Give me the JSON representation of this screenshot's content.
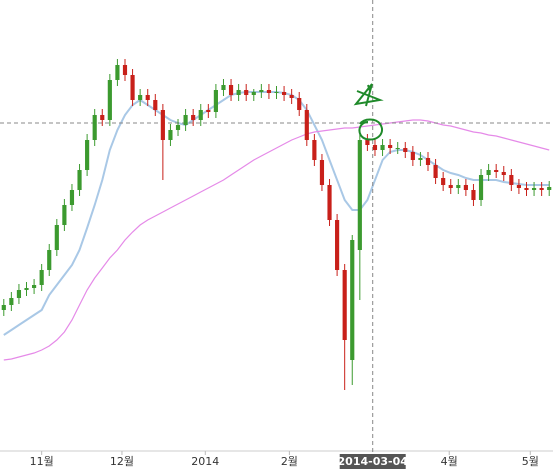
{
  "chart_data": {
    "type": "candlestick",
    "ylim": [
      0,
      450
    ],
    "xlim": [
      -0.5,
      72.5
    ],
    "up_color": "#3c9a2f",
    "down_color": "#c8201a",
    "open": [
      140,
      145,
      152,
      160,
      162,
      165,
      180,
      200,
      225,
      245,
      260,
      280,
      310,
      335,
      330,
      370,
      385,
      375,
      350,
      355,
      350,
      340,
      310,
      320,
      325,
      335,
      330,
      340,
      338,
      360,
      365,
      355,
      360,
      355,
      358,
      360,
      357,
      358,
      355,
      352,
      340,
      310,
      290,
      265,
      230,
      180,
      90,
      200,
      310,
      305,
      300,
      305,
      302,
      302,
      298,
      290,
      292,
      285,
      272,
      265,
      262,
      265,
      260,
      250,
      275,
      280,
      278,
      275,
      265,
      262,
      260,
      262,
      260
    ],
    "high": [
      151,
      158,
      166,
      168,
      171,
      186,
      206,
      231,
      251,
      266,
      286,
      316,
      341,
      341,
      376,
      391,
      391,
      381,
      361,
      361,
      356,
      346,
      326,
      331,
      341,
      341,
      346,
      346,
      366,
      371,
      371,
      366,
      366,
      361,
      366,
      366,
      364,
      364,
      361,
      358,
      346,
      316,
      296,
      271,
      236,
      186,
      215,
      320,
      316,
      311,
      311,
      311,
      308,
      308,
      304,
      298,
      298,
      291,
      278,
      271,
      271,
      271,
      266,
      281,
      286,
      286,
      284,
      281,
      271,
      268,
      268,
      268,
      269
    ],
    "low": [
      134,
      139,
      146,
      154,
      156,
      159,
      174,
      194,
      219,
      239,
      254,
      274,
      304,
      324,
      324,
      364,
      369,
      344,
      344,
      344,
      334,
      270,
      304,
      314,
      319,
      324,
      324,
      332,
      332,
      354,
      349,
      349,
      349,
      349,
      352,
      351,
      351,
      349,
      346,
      334,
      304,
      284,
      259,
      224,
      174,
      60,
      65,
      150,
      299,
      294,
      294,
      296,
      296,
      292,
      284,
      284,
      279,
      266,
      259,
      256,
      256,
      254,
      244,
      244,
      269,
      272,
      269,
      259,
      256,
      254,
      254,
      254,
      254
    ],
    "close": [
      145,
      152,
      160,
      162,
      165,
      180,
      200,
      225,
      245,
      260,
      280,
      310,
      335,
      330,
      370,
      385,
      375,
      350,
      355,
      350,
      340,
      310,
      320,
      325,
      335,
      330,
      340,
      338,
      360,
      365,
      355,
      360,
      355,
      358,
      360,
      357,
      358,
      355,
      352,
      340,
      310,
      290,
      265,
      230,
      180,
      110,
      210,
      310,
      305,
      300,
      305,
      302,
      302,
      298,
      290,
      292,
      285,
      272,
      265,
      262,
      265,
      260,
      250,
      275,
      280,
      278,
      275,
      265,
      262,
      260,
      262,
      260,
      263
    ],
    "series": [
      {
        "color": "#a9c8e6",
        "values": [
          115,
          120,
          125,
          130,
          135,
          140,
          155,
          165,
          175,
          185,
          200,
          222,
          245,
          270,
          300,
          320,
          335,
          345,
          350,
          345,
          340,
          335,
          330,
          327,
          325,
          330,
          335,
          340,
          345,
          350,
          355,
          357,
          358,
          358,
          358,
          358,
          358,
          357,
          355,
          350,
          340,
          325,
          310,
          290,
          270,
          250,
          240,
          240,
          250,
          270,
          290,
          298,
          300,
          300,
          298,
          295,
          290,
          285,
          280,
          277,
          275,
          272,
          270,
          270,
          270,
          270,
          268,
          267,
          266,
          265,
          265,
          265,
          265
        ]
      },
      {
        "color": "#e58ae8",
        "values": [
          90,
          91,
          93,
          95,
          97,
          100,
          104,
          110,
          118,
          130,
          145,
          160,
          172,
          182,
          192,
          200,
          210,
          218,
          225,
          230,
          234,
          238,
          242,
          246,
          250,
          254,
          258,
          262,
          266,
          270,
          275,
          280,
          285,
          290,
          294,
          298,
          302,
          306,
          310,
          313,
          316,
          318,
          319,
          320,
          321,
          322,
          322,
          323,
          324,
          325,
          326,
          327,
          328,
          329,
          330,
          330,
          329,
          327,
          325,
          324,
          322,
          320,
          318,
          317,
          315,
          314,
          312,
          310,
          308,
          306,
          304,
          302,
          300
        ]
      }
    ],
    "xticks": [
      {
        "value": 5,
        "label": "11월"
      },
      {
        "value": 15.6,
        "label": "12월"
      },
      {
        "value": 26.6,
        "label": "2014"
      },
      {
        "value": 37.7,
        "label": "2월"
      },
      {
        "value": 58.8,
        "label": "4월"
      },
      {
        "value": 69.5,
        "label": "5월"
      }
    ],
    "crosshair": {
      "label": "2014-03-04",
      "x": 48.7,
      "y": 327
    }
  }
}
